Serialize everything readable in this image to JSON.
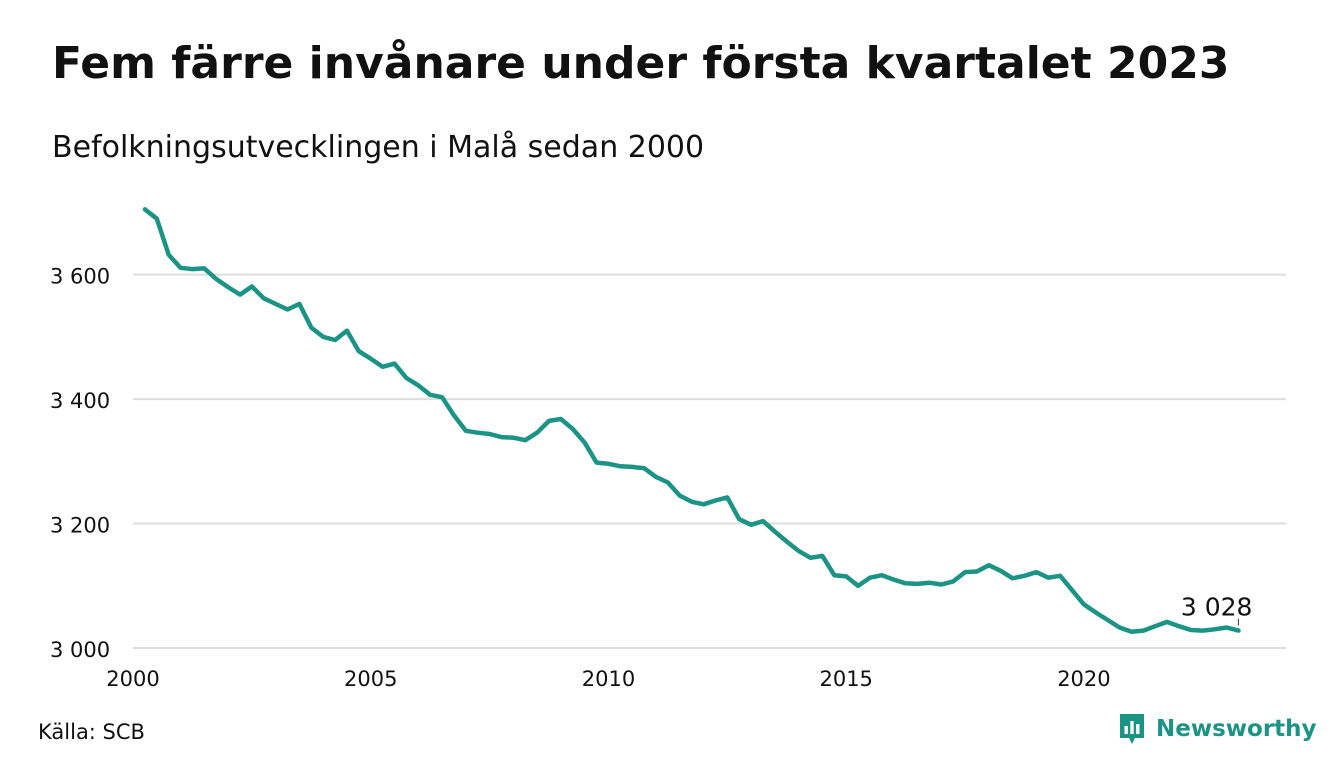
{
  "title": "Fem färre invånare under första kvartalet 2023",
  "subtitle": "Befolkningsutvecklingen i Malå sedan 2000",
  "source": "Källa: SCB",
  "brand": {
    "name": "Newsworthy",
    "logo_icon": "chart-bubble-icon"
  },
  "colors": {
    "line": "#1b9485",
    "grid": "#dedede",
    "text": "#111111",
    "brand": "#1b9485"
  },
  "chart_data": {
    "type": "line",
    "title": "Fem färre invånare under första kvartalet 2023",
    "subtitle": "Befolkningsutvecklingen i Malå sedan 2000",
    "xlabel": "",
    "ylabel": "",
    "xlim": [
      2000,
      2024.25
    ],
    "ylim": [
      3000,
      3720
    ],
    "x_ticks": [
      2000,
      2005,
      2010,
      2015,
      2020
    ],
    "x_tick_labels": [
      "2000",
      "2005",
      "2010",
      "2015",
      "2020"
    ],
    "y_ticks": [
      3000,
      3200,
      3400,
      3600
    ],
    "y_tick_labels": [
      "3 000",
      "3 200",
      "3 400",
      "3 600"
    ],
    "grid": true,
    "annotation": {
      "text": "3 028"
    },
    "series": [
      {
        "x": [
          2000.25,
          2000.5,
          2000.75,
          2001.0,
          2001.25,
          2001.5,
          2001.75,
          2002.0,
          2002.25,
          2002.5,
          2002.75,
          2003.0,
          2003.25,
          2003.5,
          2003.75,
          2004.0,
          2004.25,
          2004.5,
          2004.75,
          2005.0,
          2005.25,
          2005.5,
          2005.75,
          2006.0,
          2006.25,
          2006.5,
          2006.75,
          2007.0,
          2007.25,
          2007.5,
          2007.75,
          2008.0,
          2008.25,
          2008.5,
          2008.75,
          2009.0,
          2009.25,
          2009.5,
          2009.75,
          2010.0,
          2010.25,
          2010.5,
          2010.75,
          2011.0,
          2011.25,
          2011.5,
          2011.75,
          2012.0,
          2012.25,
          2012.5,
          2012.75,
          2013.0,
          2013.25,
          2013.5,
          2013.75,
          2014.0,
          2014.25,
          2014.5,
          2014.75,
          2015.0,
          2015.25,
          2015.5,
          2015.75,
          2016.0,
          2016.25,
          2016.5,
          2016.75,
          2017.0,
          2017.25,
          2017.5,
          2017.75,
          2018.0,
          2018.25,
          2018.5,
          2018.75,
          2019.0,
          2019.25,
          2019.5,
          2019.75,
          2020.0,
          2020.25,
          2020.5,
          2020.75,
          2021.0,
          2021.25,
          2021.5,
          2021.75,
          2022.0,
          2022.25,
          2022.5,
          2022.75,
          2023.0,
          2023.25
        ],
        "values": [
          3705,
          3690,
          3632,
          3611,
          3609,
          3610,
          3593,
          3580,
          3568,
          3581,
          3562,
          3553,
          3544,
          3553,
          3515,
          3500,
          3495,
          3510,
          3477,
          3465,
          3452,
          3457,
          3434,
          3422,
          3407,
          3403,
          3374,
          3349,
          3346,
          3344,
          3339,
          3338,
          3334,
          3346,
          3365,
          3368,
          3352,
          3330,
          3298,
          3296,
          3292,
          3291,
          3289,
          3275,
          3266,
          3245,
          3235,
          3231,
          3237,
          3242,
          3207,
          3198,
          3204,
          3187,
          3171,
          3156,
          3145,
          3148,
          3117,
          3115,
          3100,
          3113,
          3117,
          3110,
          3104,
          3103,
          3105,
          3102,
          3107,
          3122,
          3123,
          3133,
          3124,
          3112,
          3116,
          3122,
          3113,
          3116,
          3093,
          3070,
          3057,
          3045,
          3033,
          3026,
          3028,
          3035,
          3042,
          3035,
          3029,
          3028,
          3030,
          3033,
          3028
        ]
      }
    ]
  }
}
